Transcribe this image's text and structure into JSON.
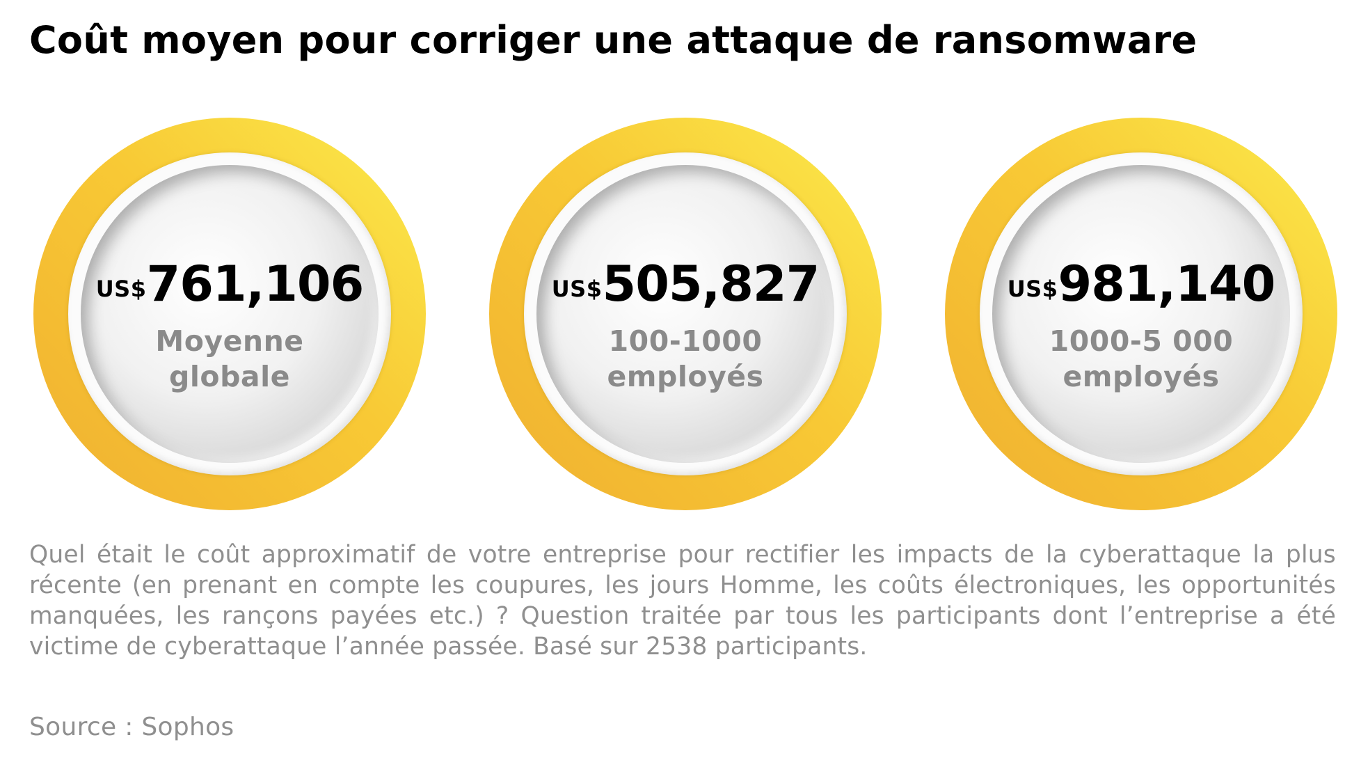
{
  "title": "Coût moyen pour corriger une attaque de ransomware",
  "chart_data": {
    "type": "table",
    "title": "Coût moyen pour corriger une attaque de ransomware",
    "currency": "US$",
    "items": [
      {
        "value": 761106,
        "display": "761,106",
        "label_lines": [
          "Moyenne",
          "globale"
        ]
      },
      {
        "value": 505827,
        "display": "505,827",
        "label_lines": [
          "100-1000",
          "employés"
        ]
      },
      {
        "value": 981140,
        "display": "981,140",
        "label_lines": [
          "1000-5 000",
          "employés"
        ]
      }
    ]
  },
  "note": "Quel était le coût approximatif de votre entreprise pour rectifier les impacts de la cyberattaque la plus récente (en prenant en compte les coupures, les jours Homme, les coûts électroniques, les opportunités manquées, les rançons payées etc.) ? Question traitée par tous les participants dont l’entreprise a été victime de cyberattaque l’année passée. Basé sur 2538 participants.",
  "source": "Source : Sophos",
  "colors": {
    "ring_yellow": "#f8c935",
    "ring_orange": "#f0b030",
    "label_gray": "#8a8a8a",
    "text_gray": "#8f8f8f"
  }
}
